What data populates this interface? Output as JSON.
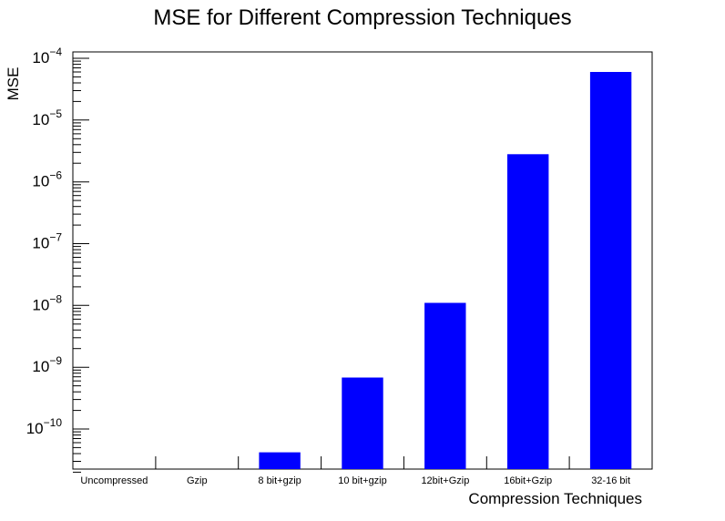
{
  "chart_data": {
    "type": "bar",
    "title": "MSE for Different Compression Techniques",
    "xlabel": "Compression Techniques",
    "ylabel": "MSE",
    "yscale": "log",
    "ylim": [
      2e-11,
      0.00012
    ],
    "grid": false,
    "legend": "none",
    "bar_color": "#0000ff",
    "categories": [
      "Uncompressed",
      "Gzip",
      "8 bit+gzip",
      "10 bit+gzip",
      "12bit+Gzip",
      "16bit+Gzip",
      "32-16 bit"
    ],
    "values": [
      0,
      0,
      4.2e-11,
      6.8e-10,
      1.1e-08,
      2.8e-06,
      6e-05
    ],
    "major_ticks": [
      {
        "value": 1e-10,
        "base": "10",
        "exp": "−10"
      },
      {
        "value": 1e-09,
        "base": "10",
        "exp": "−9"
      },
      {
        "value": 1e-08,
        "base": "10",
        "exp": "−8"
      },
      {
        "value": 1e-07,
        "base": "10",
        "exp": "−7"
      },
      {
        "value": 1e-06,
        "base": "10",
        "exp": "−6"
      },
      {
        "value": 1e-05,
        "base": "10",
        "exp": "−5"
      },
      {
        "value": 0.0001,
        "base": "10",
        "exp": "−4"
      }
    ]
  }
}
